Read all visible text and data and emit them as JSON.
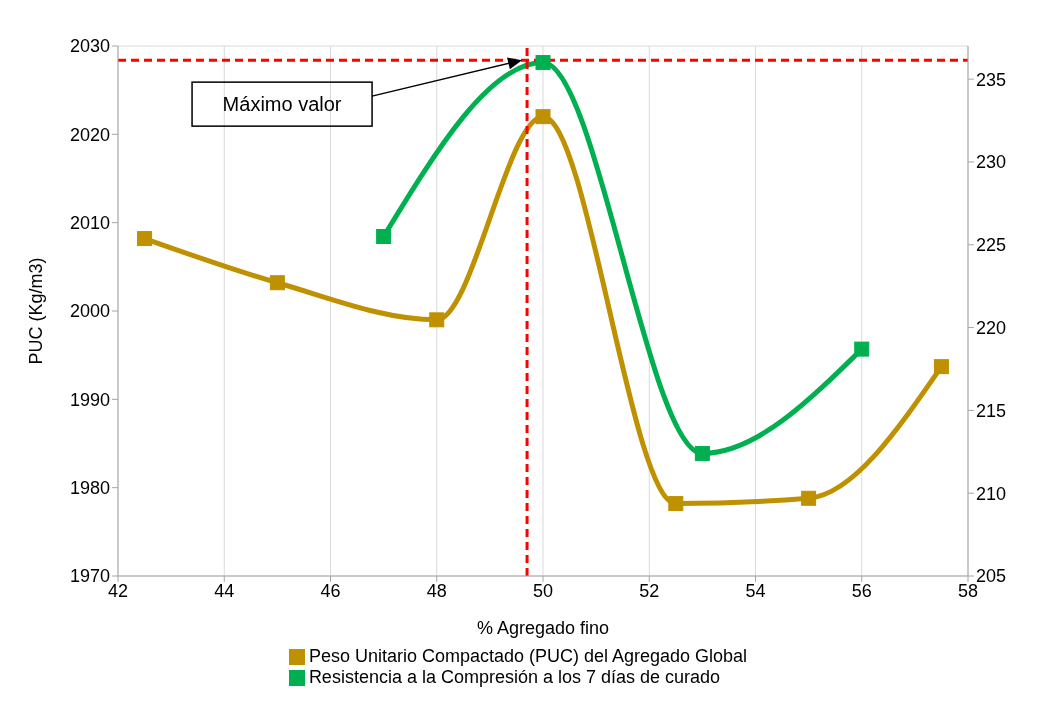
{
  "chart_data": {
    "type": "line",
    "xlabel": "% Agregado fino",
    "ylabel": "PUC (Kg/m3)",
    "xlim": [
      42,
      58
    ],
    "xticks": [
      42,
      44,
      46,
      48,
      50,
      52,
      54,
      56,
      58
    ],
    "ylim": [
      1970,
      2030
    ],
    "yticks": [
      1970,
      1980,
      1990,
      2000,
      2010,
      2020,
      2030
    ],
    "y2lim": [
      205,
      237
    ],
    "y2ticks": [
      205,
      210,
      215,
      220,
      225,
      230,
      235
    ],
    "series": [
      {
        "name": "Peso Unitario Compactado (PUC) del Agregado Global",
        "color": "#bf9000",
        "x": [
          42.5,
          45,
          48,
          50,
          52.5,
          55,
          57.5
        ],
        "values": [
          2008.2,
          2003.2,
          1999,
          2022,
          1978.2,
          1978.8,
          1993.7
        ]
      },
      {
        "name": "Resistencia a la Compresión a los 7 días de curado",
        "color": "#00b050",
        "axis": "y2",
        "x": [
          47,
          50,
          53,
          56
        ],
        "values": [
          225.5,
          236,
          212.4,
          218.7
        ]
      }
    ],
    "ref_lines": [
      {
        "axis": "x",
        "value": 49.7,
        "color": "#ff0000",
        "line_style": "dashed"
      },
      {
        "axis": "y",
        "value": 2028.4,
        "color": "#ff0000",
        "line_style": "dashed"
      }
    ],
    "annotations": [
      "Máximo valor"
    ],
    "grid": true,
    "legend": "bottom",
    "marker": "square",
    "line_style": "solid"
  }
}
